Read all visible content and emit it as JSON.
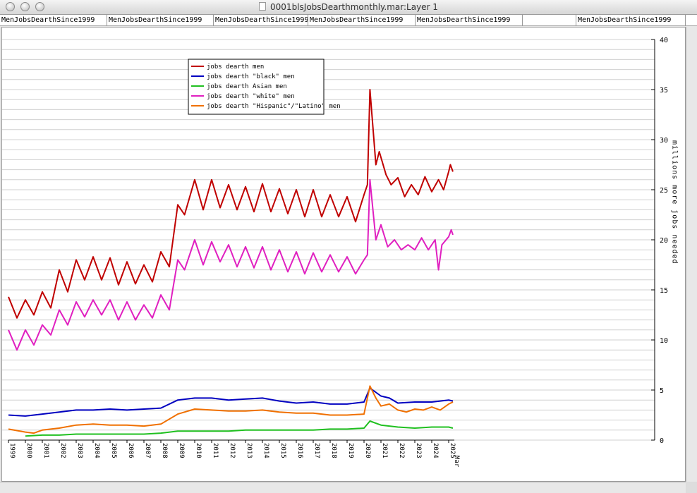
{
  "window": {
    "title": "0001blsJobsDearthmonthly.mar:Layer 1"
  },
  "columns": [
    {
      "label": "MenJobsDearthSince1999"
    },
    {
      "label": "MenJobsDearthSince1999"
    },
    {
      "label": "MenJobsDearthSince1999"
    },
    {
      "label": "MenJobsDearthSince1999"
    },
    {
      "label": "MenJobsDearthSince1999"
    },
    {
      "label": ""
    },
    {
      "label": "MenJobsDearthSince1999"
    }
  ],
  "chart_data": {
    "type": "line",
    "ylabel": "millions more jobs needed",
    "ylim": [
      0,
      40
    ],
    "yticks": [
      0,
      5,
      10,
      15,
      20,
      25,
      30,
      35,
      40
    ],
    "xlim": [
      1999,
      2025.25
    ],
    "xtick_labels": [
      "1999",
      "2000",
      "2001",
      "2002",
      "2003",
      "2004",
      "2005",
      "2006",
      "2007",
      "2008",
      "2009",
      "2010",
      "2011",
      "2012",
      "2013",
      "2014",
      "2015",
      "2016",
      "2017",
      "2018",
      "2019",
      "2020",
      "2021",
      "2022",
      "2023",
      "2024",
      "2025",
      "Mar"
    ],
    "legend_position": "top-left",
    "grid": true,
    "series": [
      {
        "name": "jobs dearth men",
        "color": "#c00000",
        "points": [
          [
            1999.0,
            14.3
          ],
          [
            1999.5,
            12.2
          ],
          [
            2000.0,
            14.0
          ],
          [
            2000.5,
            12.5
          ],
          [
            2001.0,
            14.8
          ],
          [
            2001.5,
            13.2
          ],
          [
            2002.0,
            17.0
          ],
          [
            2002.5,
            14.8
          ],
          [
            2003.0,
            18.0
          ],
          [
            2003.5,
            16.0
          ],
          [
            2004.0,
            18.3
          ],
          [
            2004.5,
            16.0
          ],
          [
            2005.0,
            18.2
          ],
          [
            2005.5,
            15.5
          ],
          [
            2006.0,
            17.8
          ],
          [
            2006.5,
            15.6
          ],
          [
            2007.0,
            17.5
          ],
          [
            2007.5,
            15.8
          ],
          [
            2008.0,
            18.8
          ],
          [
            2008.5,
            17.3
          ],
          [
            2009.0,
            23.5
          ],
          [
            2009.4,
            22.5
          ],
          [
            2010.0,
            26.0
          ],
          [
            2010.5,
            23.0
          ],
          [
            2011.0,
            26.0
          ],
          [
            2011.5,
            23.2
          ],
          [
            2012.0,
            25.5
          ],
          [
            2012.5,
            23.0
          ],
          [
            2013.0,
            25.3
          ],
          [
            2013.5,
            22.8
          ],
          [
            2014.0,
            25.6
          ],
          [
            2014.5,
            22.8
          ],
          [
            2015.0,
            25.1
          ],
          [
            2015.5,
            22.6
          ],
          [
            2016.0,
            25.0
          ],
          [
            2016.5,
            22.3
          ],
          [
            2017.0,
            25.0
          ],
          [
            2017.5,
            22.3
          ],
          [
            2018.0,
            24.5
          ],
          [
            2018.5,
            22.3
          ],
          [
            2019.0,
            24.3
          ],
          [
            2019.5,
            21.8
          ],
          [
            2020.0,
            24.5
          ],
          [
            2020.2,
            25.5
          ],
          [
            2020.35,
            35.0
          ],
          [
            2020.7,
            27.5
          ],
          [
            2020.9,
            28.8
          ],
          [
            2021.3,
            26.5
          ],
          [
            2021.6,
            25.5
          ],
          [
            2022.0,
            26.2
          ],
          [
            2022.4,
            24.3
          ],
          [
            2022.8,
            25.5
          ],
          [
            2023.2,
            24.5
          ],
          [
            2023.6,
            26.3
          ],
          [
            2024.0,
            24.8
          ],
          [
            2024.4,
            26.0
          ],
          [
            2024.7,
            25.0
          ],
          [
            2025.0,
            26.8
          ],
          [
            2025.1,
            27.5
          ],
          [
            2025.25,
            26.8
          ]
        ]
      },
      {
        "name": "jobs dearth \"black\" men",
        "color": "#0000c0",
        "points": [
          [
            1999.0,
            2.5
          ],
          [
            2000.0,
            2.4
          ],
          [
            2001.0,
            2.6
          ],
          [
            2002.0,
            2.8
          ],
          [
            2003.0,
            3.0
          ],
          [
            2004.0,
            3.0
          ],
          [
            2005.0,
            3.1
          ],
          [
            2006.0,
            3.0
          ],
          [
            2007.0,
            3.1
          ],
          [
            2008.0,
            3.2
          ],
          [
            2009.0,
            4.0
          ],
          [
            2010.0,
            4.2
          ],
          [
            2011.0,
            4.2
          ],
          [
            2012.0,
            4.0
          ],
          [
            2013.0,
            4.1
          ],
          [
            2014.0,
            4.2
          ],
          [
            2015.0,
            3.9
          ],
          [
            2016.0,
            3.7
          ],
          [
            2017.0,
            3.8
          ],
          [
            2018.0,
            3.6
          ],
          [
            2019.0,
            3.6
          ],
          [
            2020.0,
            3.8
          ],
          [
            2020.35,
            5.2
          ],
          [
            2021.0,
            4.4
          ],
          [
            2021.5,
            4.2
          ],
          [
            2022.0,
            3.7
          ],
          [
            2023.0,
            3.8
          ],
          [
            2024.0,
            3.8
          ],
          [
            2025.0,
            4.0
          ],
          [
            2025.25,
            3.9
          ]
        ]
      },
      {
        "name": "jobs dearth Asian men",
        "color": "#20c020",
        "points": [
          [
            2000.0,
            0.4
          ],
          [
            2001.0,
            0.5
          ],
          [
            2002.0,
            0.5
          ],
          [
            2003.0,
            0.6
          ],
          [
            2004.0,
            0.6
          ],
          [
            2005.0,
            0.6
          ],
          [
            2006.0,
            0.6
          ],
          [
            2007.0,
            0.6
          ],
          [
            2008.0,
            0.7
          ],
          [
            2009.0,
            0.9
          ],
          [
            2010.0,
            0.9
          ],
          [
            2011.0,
            0.9
          ],
          [
            2012.0,
            0.9
          ],
          [
            2013.0,
            1.0
          ],
          [
            2014.0,
            1.0
          ],
          [
            2015.0,
            1.0
          ],
          [
            2016.0,
            1.0
          ],
          [
            2017.0,
            1.0
          ],
          [
            2018.0,
            1.1
          ],
          [
            2019.0,
            1.1
          ],
          [
            2020.0,
            1.2
          ],
          [
            2020.35,
            1.9
          ],
          [
            2021.0,
            1.5
          ],
          [
            2022.0,
            1.3
          ],
          [
            2023.0,
            1.2
          ],
          [
            2024.0,
            1.3
          ],
          [
            2025.0,
            1.3
          ],
          [
            2025.25,
            1.2
          ]
        ]
      },
      {
        "name": "jobs dearth \"white\" men",
        "color": "#e020c0",
        "points": [
          [
            1999.0,
            11.0
          ],
          [
            1999.5,
            9.0
          ],
          [
            2000.0,
            11.0
          ],
          [
            2000.5,
            9.5
          ],
          [
            2001.0,
            11.5
          ],
          [
            2001.5,
            10.5
          ],
          [
            2002.0,
            13.0
          ],
          [
            2002.5,
            11.5
          ],
          [
            2003.0,
            13.8
          ],
          [
            2003.5,
            12.3
          ],
          [
            2004.0,
            14.0
          ],
          [
            2004.5,
            12.5
          ],
          [
            2005.0,
            14.0
          ],
          [
            2005.5,
            12.0
          ],
          [
            2006.0,
            13.8
          ],
          [
            2006.5,
            12.0
          ],
          [
            2007.0,
            13.5
          ],
          [
            2007.5,
            12.2
          ],
          [
            2008.0,
            14.5
          ],
          [
            2008.5,
            13.0
          ],
          [
            2009.0,
            18.0
          ],
          [
            2009.4,
            17.0
          ],
          [
            2010.0,
            20.0
          ],
          [
            2010.5,
            17.5
          ],
          [
            2011.0,
            19.8
          ],
          [
            2011.5,
            17.8
          ],
          [
            2012.0,
            19.5
          ],
          [
            2012.5,
            17.3
          ],
          [
            2013.0,
            19.3
          ],
          [
            2013.5,
            17.2
          ],
          [
            2014.0,
            19.3
          ],
          [
            2014.5,
            17.0
          ],
          [
            2015.0,
            19.0
          ],
          [
            2015.5,
            16.8
          ],
          [
            2016.0,
            18.8
          ],
          [
            2016.5,
            16.6
          ],
          [
            2017.0,
            18.7
          ],
          [
            2017.5,
            16.8
          ],
          [
            2018.0,
            18.5
          ],
          [
            2018.5,
            16.8
          ],
          [
            2019.0,
            18.3
          ],
          [
            2019.5,
            16.6
          ],
          [
            2020.0,
            18.0
          ],
          [
            2020.2,
            18.5
          ],
          [
            2020.35,
            26.0
          ],
          [
            2020.7,
            20.0
          ],
          [
            2021.0,
            21.5
          ],
          [
            2021.4,
            19.3
          ],
          [
            2021.8,
            20.0
          ],
          [
            2022.2,
            19.0
          ],
          [
            2022.6,
            19.5
          ],
          [
            2023.0,
            19.0
          ],
          [
            2023.4,
            20.2
          ],
          [
            2023.8,
            19.0
          ],
          [
            2024.2,
            20.0
          ],
          [
            2024.4,
            17.0
          ],
          [
            2024.6,
            19.5
          ],
          [
            2025.0,
            20.3
          ],
          [
            2025.15,
            21.0
          ],
          [
            2025.25,
            20.5
          ]
        ]
      },
      {
        "name": "jobs dearth \"Hispanic\"/\"Latino\" men",
        "color": "#f07000",
        "points": [
          [
            1999.0,
            1.1
          ],
          [
            2000.0,
            0.8
          ],
          [
            2000.5,
            0.7
          ],
          [
            2001.0,
            1.0
          ],
          [
            2002.0,
            1.2
          ],
          [
            2003.0,
            1.5
          ],
          [
            2004.0,
            1.6
          ],
          [
            2005.0,
            1.5
          ],
          [
            2006.0,
            1.5
          ],
          [
            2007.0,
            1.4
          ],
          [
            2008.0,
            1.6
          ],
          [
            2009.0,
            2.6
          ],
          [
            2010.0,
            3.1
          ],
          [
            2011.0,
            3.0
          ],
          [
            2012.0,
            2.9
          ],
          [
            2013.0,
            2.9
          ],
          [
            2014.0,
            3.0
          ],
          [
            2015.0,
            2.8
          ],
          [
            2016.0,
            2.7
          ],
          [
            2017.0,
            2.7
          ],
          [
            2018.0,
            2.5
          ],
          [
            2019.0,
            2.5
          ],
          [
            2020.0,
            2.6
          ],
          [
            2020.35,
            5.4
          ],
          [
            2020.7,
            4.2
          ],
          [
            2021.0,
            3.4
          ],
          [
            2021.5,
            3.6
          ],
          [
            2022.0,
            3.0
          ],
          [
            2022.5,
            2.8
          ],
          [
            2023.0,
            3.1
          ],
          [
            2023.5,
            3.0
          ],
          [
            2024.0,
            3.3
          ],
          [
            2024.5,
            3.0
          ],
          [
            2025.0,
            3.6
          ],
          [
            2025.25,
            3.8
          ]
        ]
      }
    ]
  }
}
